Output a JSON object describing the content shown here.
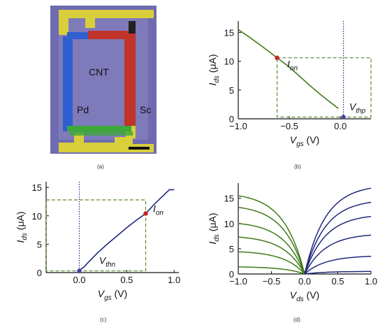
{
  "captions": {
    "a": "(a)",
    "b": "(b)",
    "c": "(c)",
    "d": "(d)"
  },
  "micrograph": {
    "labels": {
      "cnt": "CNT",
      "pd": "Pd",
      "sc": "Sc"
    },
    "colors": {
      "background": "#6f6bb0",
      "pd": "#2f5fd0",
      "sc": "#c0342a",
      "cnt": "#3ea83a",
      "pad": "#d8cf3a"
    }
  },
  "chart_data": [
    {
      "panel": "b",
      "type": "line",
      "xlabel_main": "V",
      "xlabel_sub": "gs",
      "xlabel_unit": " (V)",
      "ylabel_main": "I",
      "ylabel_sub": "ds",
      "ylabel_unit": " (μA)",
      "xlim": [
        -1.0,
        0.3
      ],
      "ylim": [
        0,
        17
      ],
      "xticks": [
        -1.0,
        -0.5,
        0.0
      ],
      "xtick_labels": [
        "−1.0",
        "−0.5",
        "0.0"
      ],
      "yticks": [
        0,
        5,
        10,
        15
      ],
      "ytick_labels": [
        "0",
        "5",
        "10",
        "15"
      ],
      "series": [
        {
          "color": "#3f7a1a",
          "x": [
            -1.0,
            -0.9,
            -0.8,
            -0.7,
            -0.62,
            -0.5,
            -0.4,
            -0.3,
            -0.2,
            -0.1,
            -0.02
          ],
          "y": [
            15.5,
            14.3,
            13.0,
            11.7,
            10.6,
            9.0,
            7.4,
            5.8,
            4.3,
            2.9,
            1.8
          ]
        }
      ],
      "vline_x": 0.03,
      "box": {
        "x": [
          -0.62,
          0.3
        ],
        "y": [
          0.3,
          10.6
        ]
      },
      "markers": [
        {
          "x": -0.62,
          "y": 10.6,
          "color": "#d02020",
          "label_main": "I",
          "label_sub": "on"
        },
        {
          "x": 0.03,
          "y": 0.3,
          "color": "#4a3fa0",
          "label_main": "V",
          "label_sub": "thp"
        }
      ]
    },
    {
      "panel": "c",
      "type": "line",
      "xlabel_main": "V",
      "xlabel_sub": "gs",
      "xlabel_unit": " (V)",
      "ylabel_main": "I",
      "ylabel_sub": "ds",
      "ylabel_unit": " (μA)",
      "xlim": [
        -0.35,
        1.05
      ],
      "ylim": [
        0,
        16
      ],
      "xticks": [
        0.0,
        0.5,
        1.0
      ],
      "xtick_labels": [
        "0.0",
        "0.5",
        "1.0"
      ],
      "yticks": [
        0,
        5,
        10,
        15
      ],
      "ytick_labels": [
        "0",
        "5",
        "10",
        "15"
      ],
      "series": [
        {
          "color": "#20287a",
          "x": [
            0.0,
            0.05,
            0.1,
            0.2,
            0.3,
            0.4,
            0.5,
            0.6,
            0.7,
            0.8,
            0.9,
            0.95,
            1.0
          ],
          "y": [
            0.4,
            1.0,
            1.9,
            3.6,
            5.1,
            6.5,
            7.9,
            9.2,
            10.4,
            12.2,
            13.8,
            14.6,
            14.6
          ]
        }
      ],
      "vline_x": 0.0,
      "box": {
        "x": [
          -0.35,
          0.7
        ],
        "y": [
          0.3,
          12.8
        ]
      },
      "markers": [
        {
          "x": 0.7,
          "y": 10.4,
          "color": "#d02020",
          "label_main": "I",
          "label_sub": "on"
        },
        {
          "x": 0.0,
          "y": 0.3,
          "color": "#4a3fa0",
          "label_main": "V",
          "label_sub": "thn"
        }
      ]
    },
    {
      "panel": "d",
      "type": "line",
      "xlabel_main": "V",
      "xlabel_sub": "ds",
      "xlabel_unit": " (V)",
      "ylabel_main": "I",
      "ylabel_sub": "ds",
      "ylabel_unit": " (μA)",
      "xlim": [
        -1.0,
        1.0
      ],
      "ylim": [
        0,
        18
      ],
      "xticks": [
        -1.0,
        -0.5,
        0.0,
        0.5,
        1.0
      ],
      "xtick_labels": [
        "−1.0",
        "−0.5",
        "0.0",
        "0.5",
        "1.0"
      ],
      "yticks": [
        0,
        5,
        10,
        15
      ],
      "ytick_labels": [
        "0",
        "5",
        "10",
        "15"
      ],
      "series_left": {
        "color": "#3f7a1a",
        "x": -1.0,
        "saturation": [
          15.5,
          13.2,
          10.0,
          7.3,
          4.4,
          1.4
        ]
      },
      "series_right": {
        "color": "#20287a",
        "x": 1.0,
        "saturation": [
          17.0,
          14.2,
          11.4,
          7.7,
          3.5,
          0.5
        ]
      }
    }
  ]
}
